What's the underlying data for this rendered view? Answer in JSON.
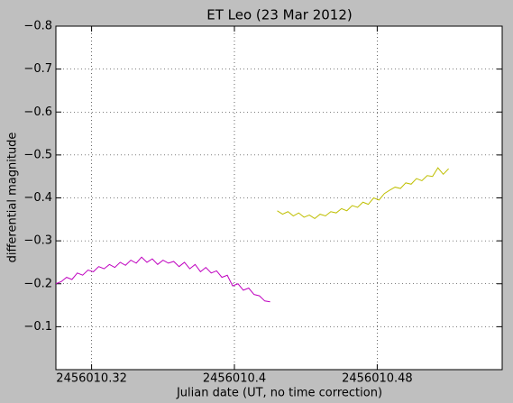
{
  "chart_data": {
    "type": "line",
    "title": "ET Leo (23 Mar 2012)",
    "x_label": "Julian date (UT, no time correction)",
    "y_label": "differential magnitude",
    "xlim": [
      2456010.3,
      2456010.55
    ],
    "ylim": [
      0,
      -0.8
    ],
    "xticks": [
      2456010.32,
      2456010.4,
      2456010.48
    ],
    "yticks": [
      {
        "value": -0.1,
        "label": "−0.1"
      },
      {
        "value": -0.2,
        "label": "−0.2"
      },
      {
        "value": -0.3,
        "label": "−0.3"
      },
      {
        "value": -0.4,
        "label": "−0.4"
      },
      {
        "value": -0.5,
        "label": "−0.5"
      },
      {
        "value": -0.6,
        "label": "−0.6"
      },
      {
        "value": -0.7,
        "label": "−0.7"
      },
      {
        "value": -0.8,
        "label": "−0.8"
      }
    ],
    "grid": true,
    "series": [
      {
        "color": "#bf00bf",
        "x": [
          2456010.3,
          2456010.303,
          2456010.306,
          2456010.309,
          2456010.312,
          2456010.315,
          2456010.318,
          2456010.321,
          2456010.324,
          2456010.327,
          2456010.33,
          2456010.333,
          2456010.336,
          2456010.339,
          2456010.342,
          2456010.345,
          2456010.348,
          2456010.351,
          2456010.354,
          2456010.357,
          2456010.36,
          2456010.363,
          2456010.366,
          2456010.369,
          2456010.372,
          2456010.375,
          2456010.378,
          2456010.381,
          2456010.384,
          2456010.387,
          2456010.39,
          2456010.393,
          2456010.396,
          2456010.399,
          2456010.402,
          2456010.405,
          2456010.408,
          2456010.411,
          2456010.414,
          2456010.417,
          2456010.42
        ],
        "values": [
          -0.2,
          -0.205,
          -0.215,
          -0.21,
          -0.225,
          -0.22,
          -0.232,
          -0.228,
          -0.24,
          -0.235,
          -0.245,
          -0.238,
          -0.25,
          -0.243,
          -0.255,
          -0.248,
          -0.262,
          -0.25,
          -0.258,
          -0.245,
          -0.255,
          -0.248,
          -0.252,
          -0.24,
          -0.25,
          -0.235,
          -0.245,
          -0.228,
          -0.238,
          -0.225,
          -0.23,
          -0.215,
          -0.22,
          -0.195,
          -0.2,
          -0.185,
          -0.19,
          -0.175,
          -0.172,
          -0.16,
          -0.158
        ]
      },
      {
        "color": "#bfbf00",
        "x": [
          2456010.424,
          2456010.427,
          2456010.43,
          2456010.433,
          2456010.436,
          2456010.439,
          2456010.442,
          2456010.445,
          2456010.448,
          2456010.451,
          2456010.454,
          2456010.457,
          2456010.46,
          2456010.463,
          2456010.466,
          2456010.469,
          2456010.472,
          2456010.475,
          2456010.478,
          2456010.481,
          2456010.484,
          2456010.487,
          2456010.49,
          2456010.493,
          2456010.496,
          2456010.499,
          2456010.502,
          2456010.505,
          2456010.508,
          2456010.511,
          2456010.514,
          2456010.517,
          2456010.52
        ],
        "values": [
          -0.37,
          -0.362,
          -0.368,
          -0.358,
          -0.365,
          -0.355,
          -0.36,
          -0.352,
          -0.362,
          -0.358,
          -0.368,
          -0.365,
          -0.375,
          -0.37,
          -0.382,
          -0.378,
          -0.39,
          -0.385,
          -0.4,
          -0.395,
          -0.41,
          -0.418,
          -0.425,
          -0.422,
          -0.435,
          -0.432,
          -0.445,
          -0.44,
          -0.452,
          -0.45,
          -0.47,
          -0.455,
          -0.468
        ]
      }
    ]
  }
}
